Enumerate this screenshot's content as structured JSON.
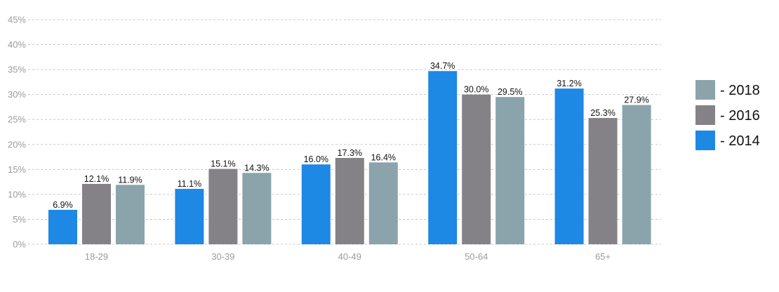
{
  "chart_data": {
    "type": "bar",
    "categories": [
      "18-29",
      "30-39",
      "40-49",
      "50-64",
      "65+"
    ],
    "series": [
      {
        "name": "2014",
        "color": "#1e88e5",
        "values": [
          6.9,
          11.1,
          16.0,
          34.7,
          31.2
        ]
      },
      {
        "name": "2016",
        "color": "#858287",
        "values": [
          12.1,
          15.1,
          17.3,
          30.0,
          25.3
        ]
      },
      {
        "name": "2018",
        "color": "#8ba3ab",
        "values": [
          11.9,
          14.3,
          16.4,
          29.5,
          27.9
        ]
      }
    ],
    "legend_prefix": "- ",
    "ylim": [
      0,
      45
    ],
    "yticks": [
      0,
      5,
      10,
      15,
      20,
      25,
      30,
      35,
      40,
      45
    ],
    "value_suffix": "%",
    "grid": true,
    "legend_position": "right",
    "legend_order": [
      "2018",
      "2016",
      "2014"
    ]
  }
}
